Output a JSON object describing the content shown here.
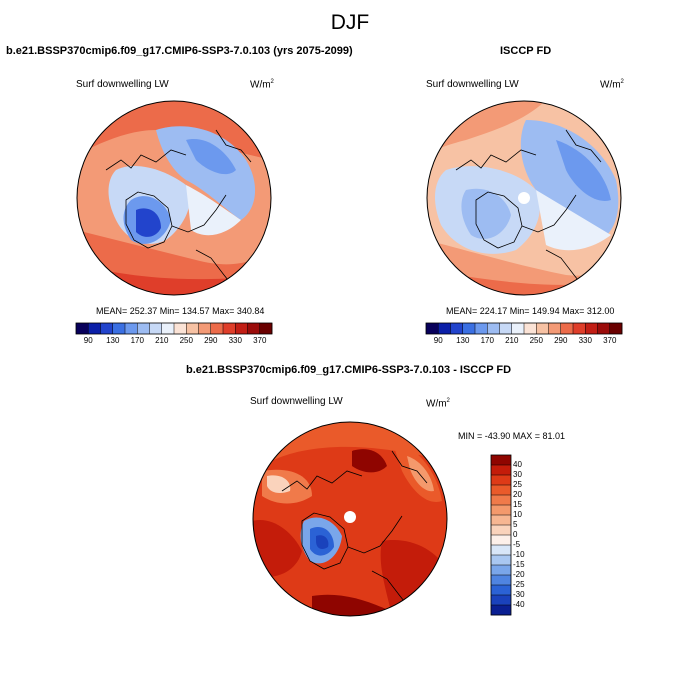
{
  "title": "DJF",
  "panels": [
    {
      "title": "b.e21.BSSP370cmip6.f09_g17.CMIP6-SSP3-7.0.103 (yrs 2075-2099)",
      "variable": "Surf downwelling LW",
      "units": "W/m",
      "units_sup": "2",
      "stats": {
        "mean": "252.37",
        "min": "134.57",
        "max": "340.84"
      },
      "stats_text": "MEAN= 252.37  Min= 134.57  Max= 340.84"
    },
    {
      "title": "ISCCP FD",
      "variable": "Surf downwelling LW",
      "units": "W/m",
      "units_sup": "2",
      "stats": {
        "mean": "224.17",
        "min": "149.94",
        "max": "312.00"
      },
      "stats_text": "MEAN= 224.17  Min= 149.94  Max= 312.00"
    },
    {
      "title": "b.e21.BSSP370cmip6.f09_g17.CMIP6-SSP3-7.0.103 - ISCCP FD",
      "variable": "Surf downwelling LW",
      "units": "W/m",
      "units_sup": "2",
      "stats": {
        "min": "-43.90",
        "max": "81.01"
      },
      "stats_text": "MIN = -43.90 MAX =  81.01"
    }
  ],
  "chart_data": {
    "type": "heatmap",
    "projection": "north polar stereographic",
    "field_colorbar": {
      "orientation": "horizontal",
      "levels": [
        90,
        110,
        130,
        150,
        170,
        190,
        210,
        230,
        250,
        270,
        290,
        310,
        330,
        350,
        370
      ],
      "tick_labels": [
        "90",
        "130",
        "170",
        "210",
        "250",
        "290",
        "330",
        "370"
      ],
      "colors": [
        "#08005a",
        "#0b1fa8",
        "#2244cc",
        "#3a6fe2",
        "#6c99ee",
        "#9dbcf2",
        "#c7d9f6",
        "#eaf1fb",
        "#fbe3d6",
        "#f7c2a4",
        "#f39a76",
        "#ec6b4a",
        "#df3e2a",
        "#c21e15",
        "#9b0c0a",
        "#6a0000"
      ]
    },
    "difference_colorbar": {
      "orientation": "vertical",
      "tick_labels": [
        "40",
        "30",
        "25",
        "20",
        "15",
        "10",
        "5",
        "0",
        "-5",
        "-10",
        "-15",
        "-20",
        "-25",
        "-30",
        "-40"
      ],
      "colors": [
        "#8f0500",
        "#c41c0a",
        "#de3a17",
        "#ea5a2a",
        "#f07a4a",
        "#f4996c",
        "#f7b692",
        "#fad3bc",
        "#fdf0ea",
        "#d8e6f8",
        "#a9c7f1",
        "#7aa6ea",
        "#4f84e1",
        "#2b62d5",
        "#1a42bc",
        "#0a1f92"
      ]
    }
  }
}
